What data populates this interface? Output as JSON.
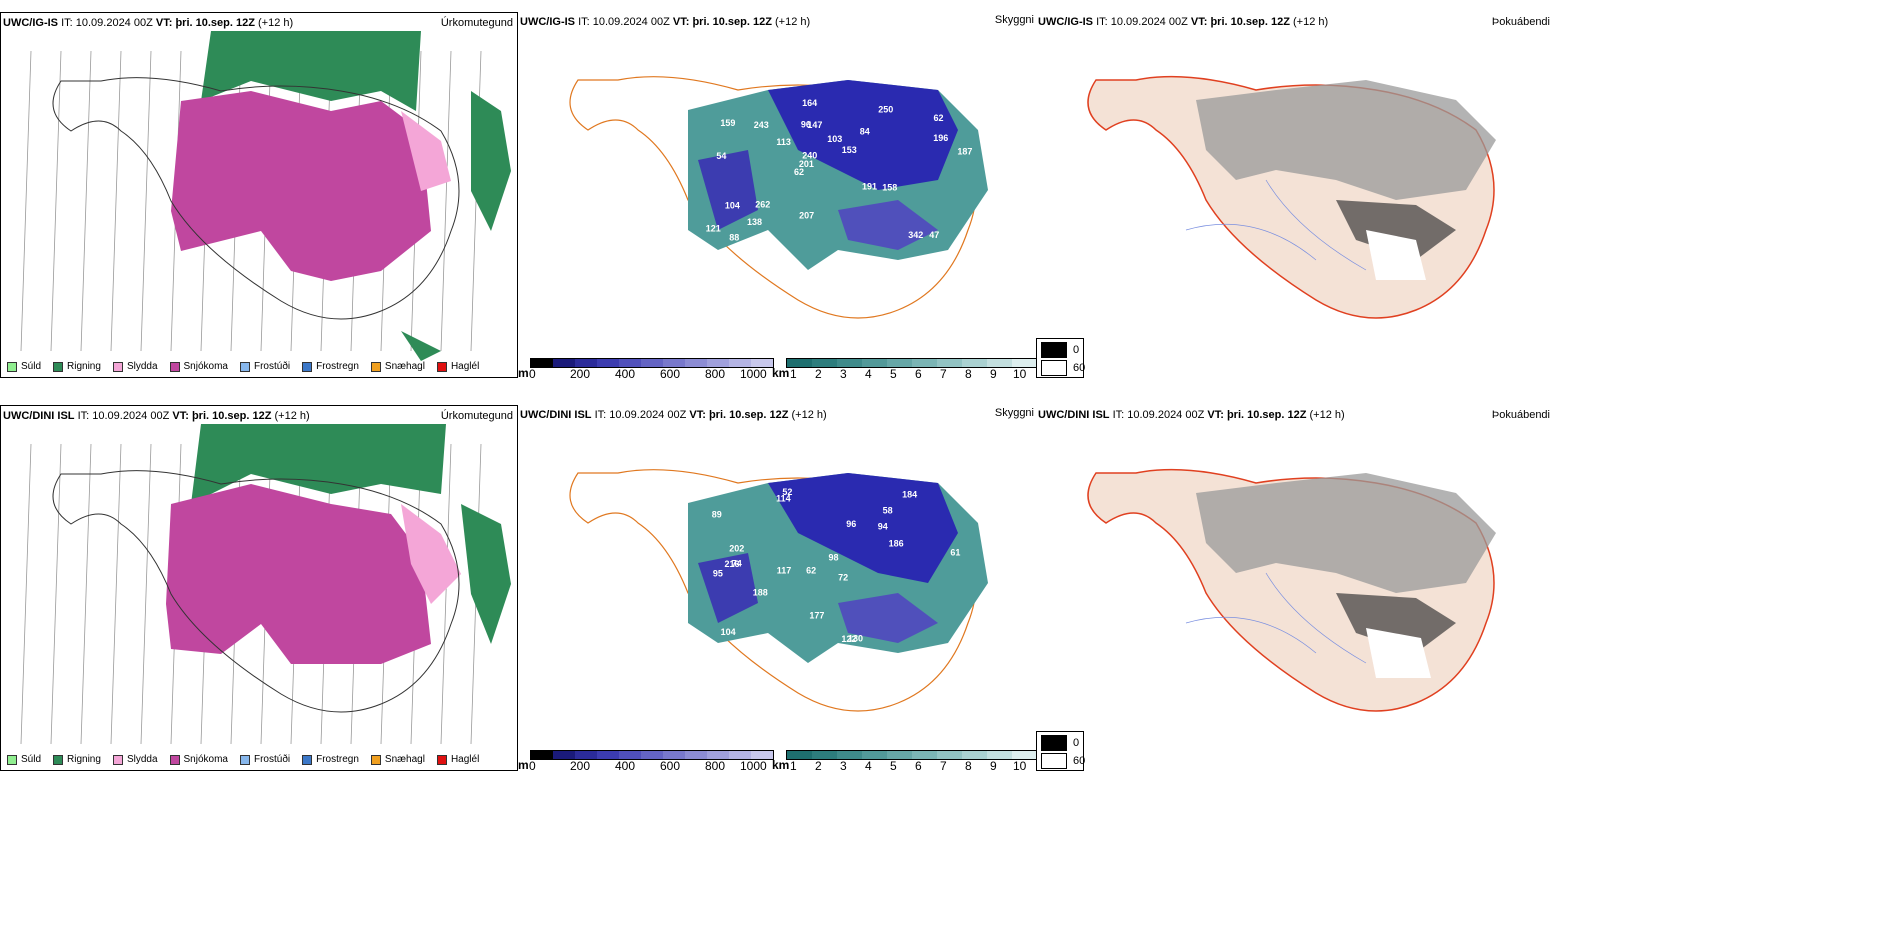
{
  "rows": [
    {
      "model": "UWC/IG-IS",
      "it_label": "IT:",
      "it_value": "10.09.2024 00Z",
      "vt_label": "VT:",
      "vt_value": "þri. 10.sep. 12Z",
      "lead": "(+12 h)",
      "panels": [
        "Úrkomutegund",
        "Skyggni",
        "Þokuábendi"
      ]
    },
    {
      "model": "UWC/DINI ISL",
      "it_label": "IT:",
      "it_value": "10.09.2024 00Z",
      "vt_label": "VT:",
      "vt_value": "þri. 10.sep. 12Z",
      "lead": "(+12 h)",
      "panels": [
        "Úrkomutegund",
        "Skyggni",
        "Þokuábendi"
      ]
    }
  ],
  "precip_legend": [
    {
      "label": "Súld",
      "color": "#90ee90"
    },
    {
      "label": "Rigning",
      "color": "#2e8b57"
    },
    {
      "label": "Slydda",
      "color": "#f4a6d7"
    },
    {
      "label": "Snjókoma",
      "color": "#c0479f"
    },
    {
      "label": "Frostúði",
      "color": "#87b7ec"
    },
    {
      "label": "Frostregn",
      "color": "#3c78c8"
    },
    {
      "label": "Snæhagl",
      "color": "#f0a020"
    },
    {
      "label": "Haglél",
      "color": "#e01010"
    }
  ],
  "vis_m_bar": {
    "unit": "m",
    "ticks": [
      "0",
      "200",
      "400",
      "600",
      "800",
      "1000"
    ],
    "colors": [
      "#000000",
      "#1a1a7a",
      "#2b2b9a",
      "#3c3cb0",
      "#5050bb",
      "#6464c4",
      "#7878cc",
      "#8c8cd4",
      "#a0a0dc",
      "#b4b4e4",
      "#c8c8ec"
    ]
  },
  "vis_km_bar": {
    "unit": "km",
    "ticks": [
      "1",
      "2",
      "3",
      "4",
      "5",
      "6",
      "7",
      "8",
      "9",
      "10"
    ],
    "colors": [
      "#1e6f6f",
      "#2d7d7d",
      "#3f8b8b",
      "#529999",
      "#66a7a7",
      "#7bb5b5",
      "#92c3c3",
      "#aad1d1",
      "#c3dfdf",
      "#ddeeee"
    ]
  },
  "fog_legend": [
    {
      "value": "0",
      "color": "#000000"
    },
    {
      "value": "60",
      "color": "#ffffff"
    }
  ],
  "labels_top": [
    "47",
    "54",
    "62",
    "62",
    "84",
    "88",
    "96",
    "103",
    "104",
    "113",
    "121",
    "138",
    "147",
    "153",
    "158",
    "159",
    "164",
    "187",
    "191",
    "196",
    "201",
    "207",
    "240",
    "243",
    "250",
    "262",
    "342"
  ],
  "labels_bottom": [
    "52",
    "58",
    "61",
    "62",
    "72",
    "74",
    "89",
    "94",
    "95",
    "96",
    "98",
    "104",
    "114",
    "117",
    "122",
    "130",
    "177",
    "184",
    "186",
    "188",
    "202",
    "216"
  ]
}
